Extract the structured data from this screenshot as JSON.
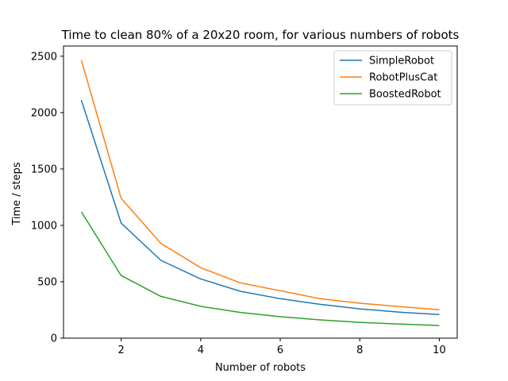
{
  "chart_data": {
    "type": "line",
    "title": "Time to clean 80% of a 20x20 room, for various numbers of robots",
    "xlabel": "Number of robots",
    "ylabel": "Time / steps",
    "x": [
      1,
      2,
      3,
      4,
      5,
      6,
      7,
      8,
      9,
      10
    ],
    "xlim": [
      0.55,
      10.45
    ],
    "ylim": [
      0,
      2590
    ],
    "xticks": [
      2,
      4,
      6,
      8,
      10
    ],
    "yticks": [
      0,
      500,
      1000,
      1500,
      2000,
      2500
    ],
    "grid": false,
    "legend_position": "top-right",
    "series": [
      {
        "name": "SimpleRobot",
        "color": "#1f77b4",
        "values": [
          2110,
          1020,
          690,
          525,
          415,
          350,
          300,
          260,
          230,
          210
        ]
      },
      {
        "name": "RobotPlusCat",
        "color": "#ff7f0e",
        "values": [
          2465,
          1240,
          840,
          625,
          490,
          420,
          350,
          310,
          280,
          252
        ]
      },
      {
        "name": "BoostedRobot",
        "color": "#2ca02c",
        "values": [
          1120,
          555,
          370,
          282,
          228,
          190,
          162,
          140,
          125,
          112
        ]
      }
    ]
  }
}
